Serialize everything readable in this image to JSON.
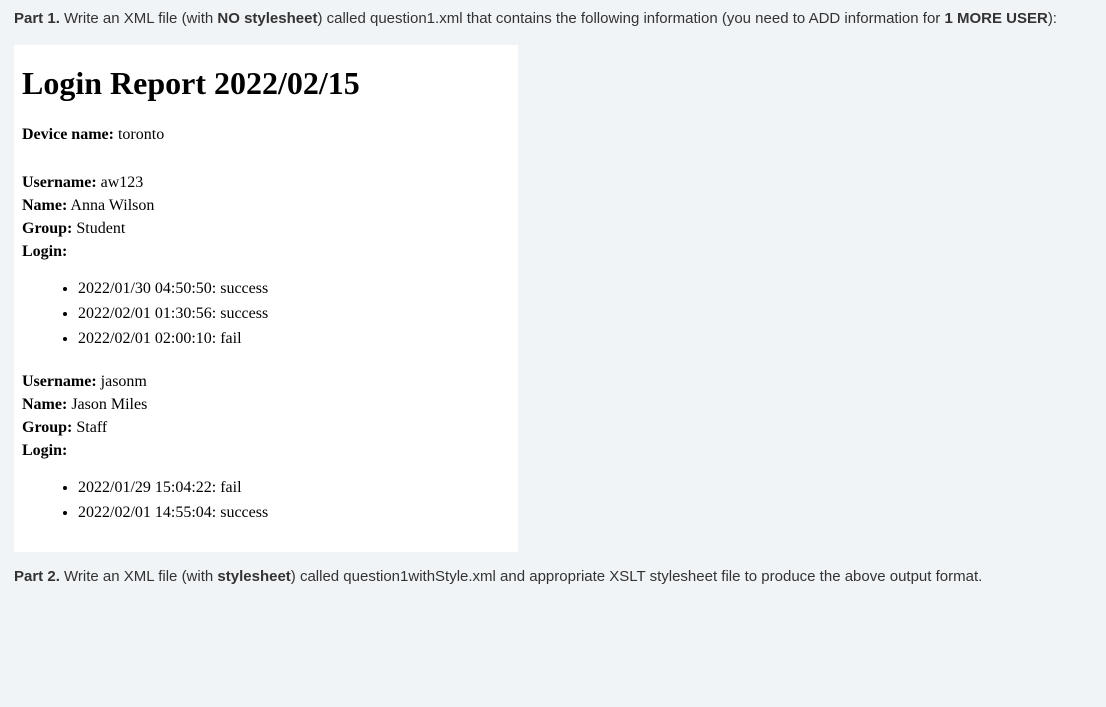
{
  "part1": {
    "label": "Part 1.",
    "text_a": " Write an XML file (with ",
    "bold_a": "NO stylesheet",
    "text_b": ") called question1.xml that contains the following information (you need to ADD information for ",
    "bold_b": "1 MORE USER",
    "text_c": "):"
  },
  "report": {
    "title": "Login Report 2022/02/15",
    "device_label": "Device name:",
    "device_value": " toronto",
    "labels": {
      "username": "Username:",
      "name": "Name:",
      "group": "Group:",
      "login": "Login:"
    },
    "users": [
      {
        "username": " aw123",
        "name": " Anna Wilson",
        "group": " Student",
        "logins": [
          "2022/01/30 04:50:50: success",
          "2022/02/01 01:30:56: success",
          "2022/02/01 02:00:10: fail"
        ]
      },
      {
        "username": " jasonm",
        "name": " Jason Miles",
        "group": " Staff",
        "logins": [
          "2022/01/29 15:04:22: fail",
          "2022/02/01 14:55:04: success"
        ]
      }
    ]
  },
  "part2": {
    "label": "Part 2.",
    "text_a": " Write an XML file (with ",
    "bold_a": "stylesheet",
    "text_b": ") called question1withStyle.xml and appropriate XSLT stylesheet file to produce the above output format."
  }
}
